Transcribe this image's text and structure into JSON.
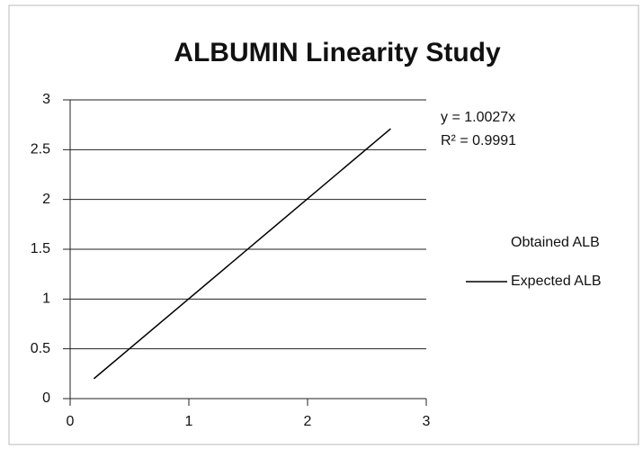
{
  "chart_data": {
    "type": "line",
    "title": "ALBUMIN Linearity Study",
    "annotations": [
      "y = 1.0027x",
      "R² = 0.9991"
    ],
    "series": [
      {
        "name": "Obtained ALB",
        "x": [],
        "values": []
      },
      {
        "name": "Expected ALB",
        "color": "#000000",
        "x": [
          0.2,
          2.7
        ],
        "values": [
          0.2,
          2.71
        ]
      }
    ],
    "xlim": [
      0,
      3
    ],
    "xticks": [
      0,
      1,
      2,
      3
    ],
    "ylim": [
      0,
      3
    ],
    "yticks": [
      0,
      0.5,
      1,
      1.5,
      2,
      2.5,
      3
    ],
    "grid": true,
    "legend": "right"
  }
}
